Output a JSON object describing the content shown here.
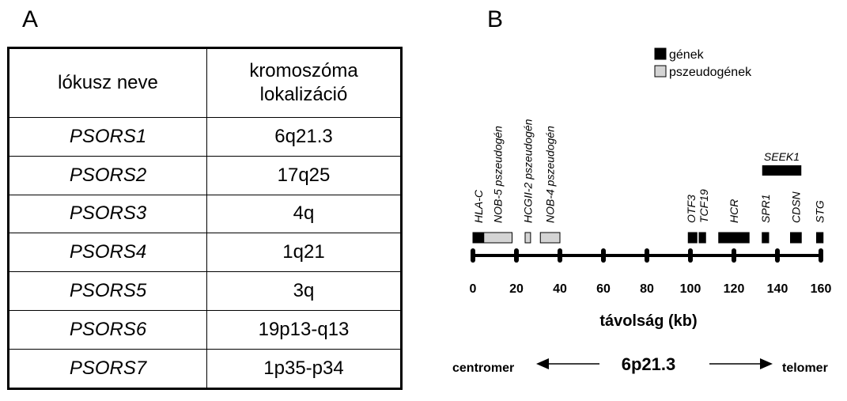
{
  "panels": {
    "a": "A",
    "b": "B"
  },
  "table": {
    "header": {
      "col1": "lókusz neve",
      "col2_line1": "kromoszóma",
      "col2_line2": "lokalizáció"
    },
    "rows": [
      {
        "name": "PSORS1",
        "loc": "6q21.3"
      },
      {
        "name": "PSORS2",
        "loc": "17q25"
      },
      {
        "name": "PSORS3",
        "loc": "4q"
      },
      {
        "name": "PSORS4",
        "loc": "1q21"
      },
      {
        "name": "PSORS5",
        "loc": "3q"
      },
      {
        "name": "PSORS6",
        "loc": "19p13-q13"
      },
      {
        "name": "PSORS7",
        "loc": "1p35-p34"
      }
    ]
  },
  "map": {
    "legend": [
      {
        "label": "gének",
        "color": "#000000"
      },
      {
        "label": "pszeudogének",
        "color": "#d4d4d4"
      }
    ],
    "axis": {
      "ticks": [
        0,
        20,
        40,
        60,
        80,
        100,
        120,
        140,
        160
      ],
      "label": "távolság (kb)"
    },
    "elements": [
      {
        "label": "HLA-C",
        "type": "gene",
        "start": 0,
        "end": 5
      },
      {
        "label": "NOB-5 pszeudogén",
        "type": "pseudogene",
        "start": 5,
        "end": 18
      },
      {
        "label": "HCGII-2 pszeudogén",
        "type": "pseudogene",
        "start": 24,
        "end": 26.5
      },
      {
        "label": "NOB-4 pszeudogén",
        "type": "pseudogene",
        "start": 31,
        "end": 40
      },
      {
        "label": "OTF3",
        "type": "gene",
        "start": 99,
        "end": 103
      },
      {
        "label": "TCF19",
        "type": "gene",
        "start": 104,
        "end": 107
      },
      {
        "label": "HCR",
        "type": "gene",
        "start": 113,
        "end": 127
      },
      {
        "label": "SPR1",
        "type": "gene",
        "start": 133,
        "end": 136
      },
      {
        "label": "CDSN",
        "type": "gene",
        "start": 146,
        "end": 151
      },
      {
        "label": "STG",
        "type": "gene",
        "start": 158,
        "end": 161
      }
    ],
    "seek1": {
      "label": "SEEK1",
      "start": 133,
      "end": 151
    },
    "orientation": {
      "left": "centromer",
      "center": "6p21.3",
      "right": "telomer"
    }
  }
}
